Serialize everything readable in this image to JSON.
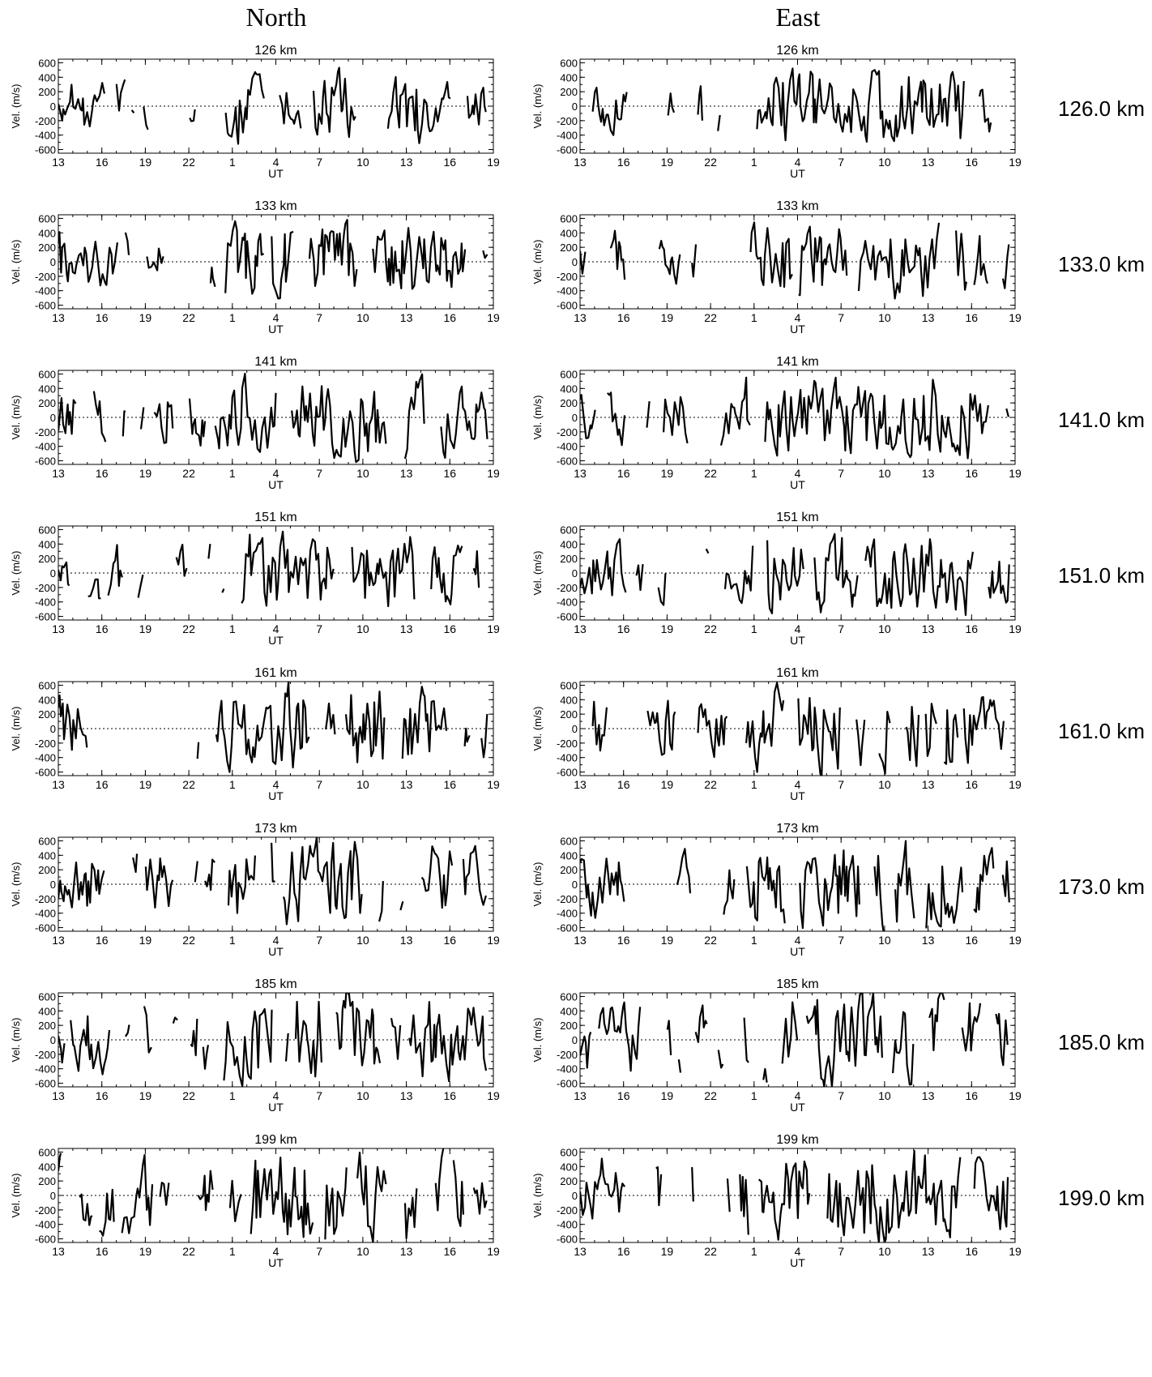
{
  "figure": {
    "column_titles": [
      "North",
      "East"
    ],
    "row_labels": [
      "126.0 km",
      "133.0 km",
      "141.0 km",
      "151.0 km",
      "161.0 km",
      "173.0 km",
      "185.0 km",
      "199.0 km"
    ]
  },
  "chart_data": {
    "type": "line",
    "panel_titles": [
      "126 km",
      "133 km",
      "141 km",
      "151 km",
      "161 km",
      "173 km",
      "185 km",
      "199 km"
    ],
    "columns": [
      "North",
      "East"
    ],
    "xlabel": "UT",
    "ylabel": "Vel. (m/s)",
    "xticks": [
      "13",
      "16",
      "19",
      "22",
      "1",
      "4",
      "7",
      "10",
      "13",
      "16",
      "19"
    ],
    "xlim_hours": [
      13,
      43
    ],
    "yticks": [
      "600",
      "400",
      "200",
      "0",
      "-200",
      "-400",
      "-600"
    ],
    "ylim": [
      -650,
      650
    ],
    "zero_line": "dotted",
    "line_color": "#000000",
    "series_note": "Velocity time series digitized approximately; each panel one series",
    "series": []
  }
}
